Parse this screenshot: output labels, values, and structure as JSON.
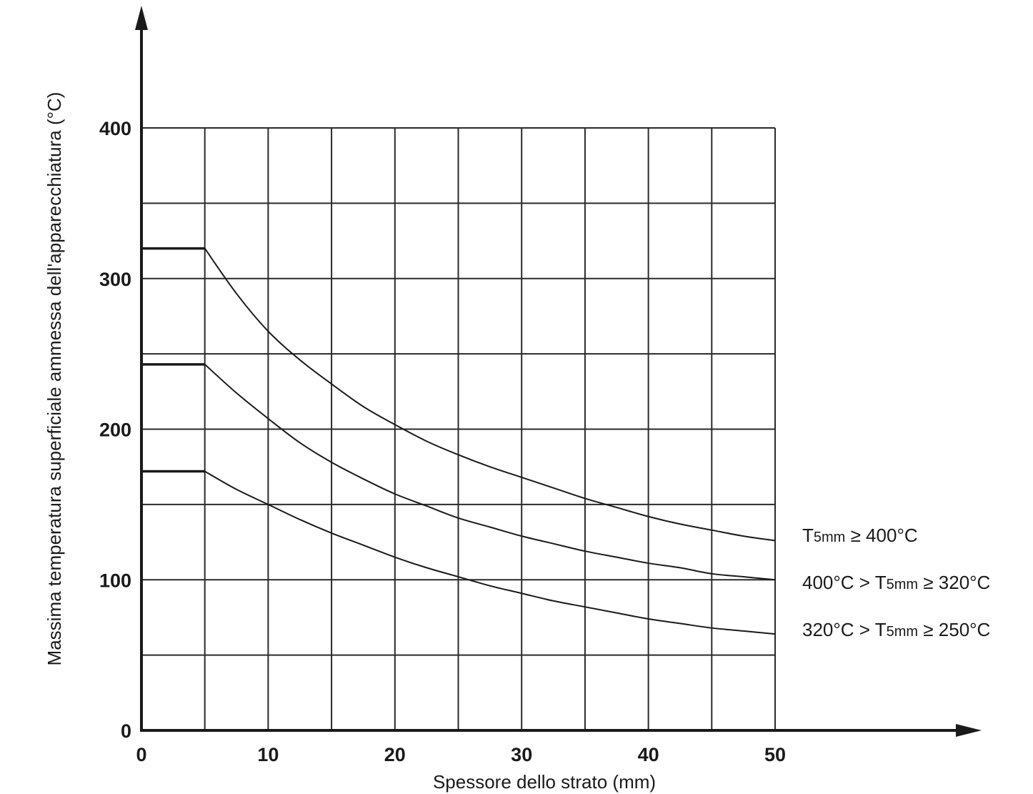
{
  "chart_data": {
    "type": "line",
    "title": "",
    "xlabel": "Spessore dello strato (mm)",
    "ylabel": "Massima temperatura superficiale ammessa dell'apparecchiatura (°C)",
    "xlim": [
      0,
      50
    ],
    "ylim": [
      0,
      400
    ],
    "x_ticks": [
      0,
      10,
      20,
      30,
      40,
      50
    ],
    "y_ticks": [
      0,
      100,
      200,
      300,
      400
    ],
    "grid": true,
    "legend": "right",
    "series": [
      {
        "name": "T5mm ≥ 400°C",
        "label_parts": [
          "T",
          "5mm",
          " ≥ 400°C"
        ],
        "x": [
          0,
          5,
          7.5,
          10,
          12.5,
          15,
          17.5,
          20,
          22.5,
          25,
          27.5,
          30,
          32.5,
          35,
          37.5,
          40,
          42.5,
          45,
          47.5,
          50
        ],
        "y": [
          320,
          320,
          290,
          265,
          246,
          230,
          215,
          203,
          192,
          183,
          175,
          168,
          161,
          154,
          148,
          142,
          137,
          133,
          129,
          126
        ]
      },
      {
        "name": "400°C > T5mm ≥ 320°C",
        "label_parts": [
          "400°C > T",
          "5mm",
          " ≥ 320°C"
        ],
        "x": [
          0,
          5,
          7.5,
          10,
          12.5,
          15,
          17.5,
          20,
          22.5,
          25,
          27.5,
          30,
          32.5,
          35,
          37.5,
          40,
          42.5,
          45,
          47.5,
          50
        ],
        "y": [
          243,
          243,
          224,
          207,
          191,
          178,
          167,
          157,
          149,
          141,
          135,
          129,
          124,
          119,
          115,
          111,
          108,
          104,
          102,
          100
        ]
      },
      {
        "name": "320°C > T5mm ≥ 250°C",
        "label_parts": [
          "320°C > T",
          "5mm",
          " ≥ 250°C"
        ],
        "x": [
          0,
          5,
          7.5,
          10,
          12.5,
          15,
          17.5,
          20,
          22.5,
          25,
          27.5,
          30,
          32.5,
          35,
          37.5,
          40,
          42.5,
          45,
          47.5,
          50
        ],
        "y": [
          172,
          172,
          160,
          150,
          140,
          131,
          123,
          115,
          108,
          102,
          96,
          91,
          86,
          82,
          78,
          74,
          71,
          68,
          66,
          64
        ]
      }
    ]
  }
}
